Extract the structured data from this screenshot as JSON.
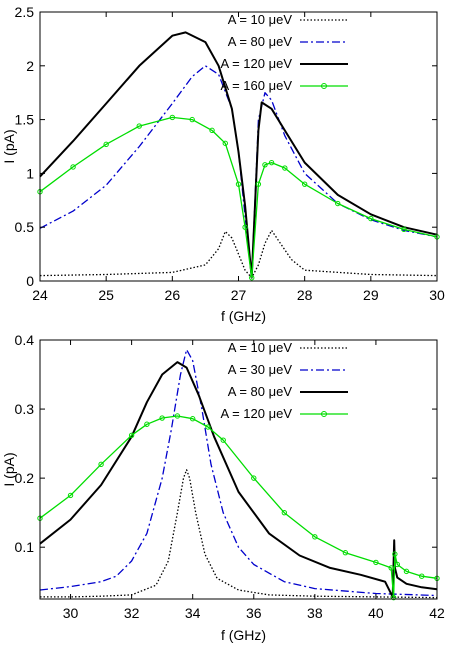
{
  "chart_data": [
    {
      "type": "line",
      "xlabel": "f (GHz)",
      "ylabel": "I (pA)",
      "xlim": [
        24,
        30
      ],
      "ylim": [
        0,
        2.5
      ],
      "xticks": [
        "24",
        "25",
        "26",
        "27",
        "28",
        "29",
        "30"
      ],
      "yticks": [
        "0",
        "0.5",
        "1",
        "1.5",
        "2",
        "2.5"
      ],
      "xtick_values": [
        24,
        25,
        26,
        27,
        28,
        29,
        30
      ],
      "ytick_values": [
        0,
        0.5,
        1,
        1.5,
        2,
        2.5
      ],
      "grid": false,
      "legend_position": "top-right",
      "series": [
        {
          "name": "A = 10 μeV",
          "color": "#000000",
          "style": "dotted",
          "x": [
            24,
            25,
            26,
            26.5,
            26.7,
            26.8,
            26.9,
            27.0,
            27.1,
            27.2,
            27.3,
            27.4,
            27.5,
            27.6,
            27.8,
            28,
            29,
            30
          ],
          "y": [
            0.05,
            0.06,
            0.08,
            0.15,
            0.3,
            0.46,
            0.4,
            0.25,
            0.1,
            0.03,
            0.15,
            0.35,
            0.47,
            0.38,
            0.2,
            0.1,
            0.06,
            0.05
          ]
        },
        {
          "name": "A = 80 μeV",
          "color": "#0000cc",
          "style": "dashdot",
          "x": [
            24,
            24.5,
            25,
            25.5,
            26,
            26.3,
            26.5,
            26.7,
            26.9,
            27.0,
            27.1,
            27.2,
            27.3,
            27.4,
            27.5,
            27.7,
            28,
            28.5,
            29,
            29.5,
            30
          ],
          "y": [
            0.49,
            0.65,
            0.89,
            1.25,
            1.65,
            1.9,
            2.0,
            1.92,
            1.6,
            1.2,
            0.6,
            0.03,
            1.5,
            1.75,
            1.68,
            1.35,
            1.0,
            0.72,
            0.57,
            0.47,
            0.41
          ]
        },
        {
          "name": "A = 120 μeV",
          "color": "#000000",
          "style": "solid",
          "x": [
            24,
            24.5,
            25,
            25.5,
            26,
            26.2,
            26.5,
            26.7,
            26.9,
            27.0,
            27.1,
            27.2,
            27.3,
            27.35,
            27.5,
            27.7,
            28,
            28.5,
            29,
            29.5,
            30
          ],
          "y": [
            0.97,
            1.3,
            1.65,
            2.0,
            2.28,
            2.31,
            2.22,
            2.0,
            1.6,
            1.2,
            0.7,
            0.03,
            1.4,
            1.66,
            1.6,
            1.4,
            1.1,
            0.8,
            0.62,
            0.5,
            0.43
          ]
        },
        {
          "name": "A = 160 μeV",
          "color": "#00dd00",
          "style": "circles",
          "x": [
            24,
            24.5,
            25,
            25.5,
            26,
            26.3,
            26.6,
            26.8,
            27.0,
            27.1,
            27.2,
            27.3,
            27.4,
            27.5,
            27.7,
            28,
            28.5,
            29,
            29.5,
            30
          ],
          "y": [
            0.83,
            1.06,
            1.27,
            1.44,
            1.52,
            1.5,
            1.4,
            1.28,
            0.9,
            0.5,
            0.03,
            0.9,
            1.08,
            1.1,
            1.05,
            0.9,
            0.72,
            0.58,
            0.48,
            0.41
          ]
        }
      ]
    },
    {
      "type": "line",
      "xlabel": "f (GHz)",
      "ylabel": "I (pA)",
      "xlim": [
        29,
        42
      ],
      "ylim": [
        0.025,
        0.4
      ],
      "xticks": [
        "30",
        "32",
        "34",
        "36",
        "38",
        "40",
        "42"
      ],
      "yticks": [
        "0.1",
        "0.2",
        "0.3",
        "0.4"
      ],
      "xtick_values": [
        30,
        32,
        34,
        36,
        38,
        40,
        42
      ],
      "ytick_values": [
        0.1,
        0.2,
        0.3,
        0.4
      ],
      "grid": false,
      "legend_position": "top-right",
      "series": [
        {
          "name": "A = 10 μeV",
          "color": "#000000",
          "style": "dotted",
          "x": [
            29,
            30,
            31,
            32,
            32.8,
            33.2,
            33.5,
            33.7,
            33.8,
            33.9,
            34.1,
            34.4,
            34.8,
            35.5,
            36.5,
            38,
            40,
            42
          ],
          "y": [
            0.028,
            0.028,
            0.029,
            0.031,
            0.045,
            0.08,
            0.15,
            0.2,
            0.212,
            0.2,
            0.15,
            0.09,
            0.055,
            0.038,
            0.031,
            0.029,
            0.028,
            0.027
          ]
        },
        {
          "name": "A = 30 μeV",
          "color": "#0000cc",
          "style": "dashdot",
          "x": [
            29,
            30,
            31,
            31.5,
            32,
            32.5,
            33,
            33.3,
            33.6,
            33.8,
            34.0,
            34.3,
            34.6,
            35,
            35.5,
            36,
            37,
            38,
            40,
            42
          ],
          "y": [
            0.038,
            0.043,
            0.05,
            0.058,
            0.08,
            0.12,
            0.2,
            0.27,
            0.35,
            0.386,
            0.37,
            0.3,
            0.22,
            0.15,
            0.1,
            0.075,
            0.05,
            0.04,
            0.033,
            0.03
          ]
        },
        {
          "name": "A = 80 μeV",
          "color": "#000000",
          "style": "solid",
          "x": [
            29,
            30,
            31,
            32,
            32.5,
            33,
            33.5,
            33.8,
            34.2,
            34.7,
            35.5,
            36.5,
            37.5,
            38.5,
            39.5,
            40.3,
            40.55,
            40.6,
            40.62,
            40.7,
            41,
            41.5,
            42
          ],
          "y": [
            0.105,
            0.14,
            0.19,
            0.26,
            0.31,
            0.35,
            0.368,
            0.36,
            0.32,
            0.26,
            0.18,
            0.12,
            0.088,
            0.07,
            0.06,
            0.05,
            0.028,
            0.11,
            0.07,
            0.056,
            0.047,
            0.042,
            0.039
          ]
        },
        {
          "name": "A = 120 μeV",
          "color": "#00dd00",
          "style": "circles",
          "x": [
            29,
            30,
            31,
            32,
            32.5,
            33,
            33.5,
            34,
            34.5,
            35,
            36,
            37,
            38,
            39,
            40,
            40.5,
            40.58,
            40.62,
            40.7,
            41,
            41.5,
            42
          ],
          "y": [
            0.142,
            0.175,
            0.22,
            0.262,
            0.278,
            0.287,
            0.29,
            0.286,
            0.274,
            0.255,
            0.2,
            0.15,
            0.115,
            0.092,
            0.078,
            0.07,
            0.027,
            0.09,
            0.075,
            0.065,
            0.058,
            0.055
          ]
        }
      ]
    }
  ]
}
